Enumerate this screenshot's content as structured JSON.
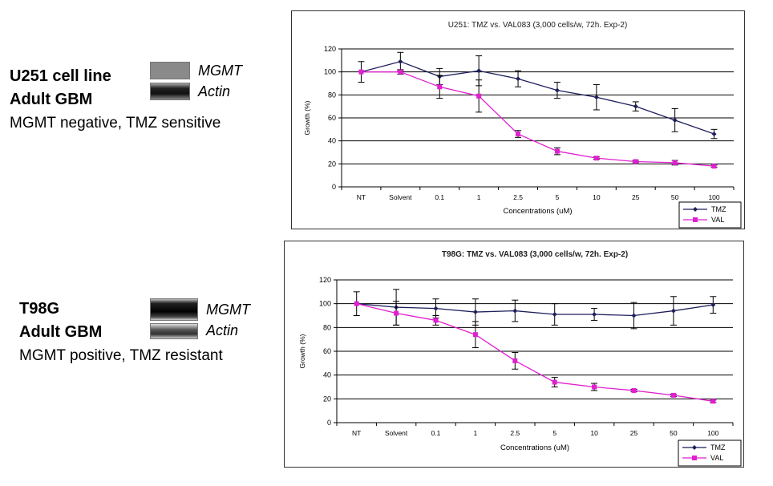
{
  "panels": [
    {
      "cell_line": "U251 cell line",
      "type": "Adult GBM",
      "status": "MGMT negative, TMZ sensitive",
      "blot_labels": [
        "MGMT",
        "Actin"
      ]
    },
    {
      "cell_line": "T98G",
      "type": "Adult GBM",
      "status": "MGMT positive, TMZ resistant",
      "blot_labels": [
        "MGMT",
        "Actin"
      ]
    }
  ],
  "colors": {
    "tmz": "#1f1f5c",
    "val": "#e020d0",
    "grid": "#000000"
  },
  "chart_data": [
    {
      "type": "line",
      "title": "U251: TMZ vs. VAL083 (3,000 cells/w, 72h. Exp-2)",
      "xlabel": "Concentrations (uM)",
      "ylabel": "Growth (%)",
      "categories": [
        "NT",
        "Solvent",
        "0.1",
        "1",
        "2.5",
        "5",
        "10",
        "25",
        "50",
        "100"
      ],
      "ylim": [
        0,
        120
      ],
      "yticks": [
        0,
        20,
        40,
        60,
        80,
        100,
        120
      ],
      "legend_position": "bottom-right",
      "series": [
        {
          "name": "TMZ",
          "marker": "diamond",
          "values": [
            100,
            109,
            96,
            101,
            94,
            84,
            78,
            70,
            58,
            46
          ],
          "errors": [
            9,
            8,
            7,
            13,
            7,
            7,
            11,
            4,
            10,
            4
          ]
        },
        {
          "name": "VAL",
          "marker": "square",
          "values": [
            100,
            100,
            87,
            79,
            46,
            31,
            25,
            22,
            21,
            18
          ],
          "errors": [
            0,
            2,
            10,
            14,
            3,
            3,
            1,
            1,
            2,
            1
          ]
        }
      ]
    },
    {
      "type": "line",
      "title": "T98G: TMZ vs. VAL083 (3,000 cells/w, 72h. Exp-2)",
      "xlabel": "Concentrations (uM)",
      "ylabel": "Growth (%)",
      "categories": [
        "NT",
        "Solvent",
        "0.1",
        "1",
        "2.5",
        "5",
        "10",
        "25",
        "50",
        "100"
      ],
      "ylim": [
        0,
        120
      ],
      "yticks": [
        0,
        20,
        40,
        60,
        80,
        100,
        120
      ],
      "legend_position": "bottom-right",
      "series": [
        {
          "name": "TMZ",
          "marker": "diamond",
          "values": [
            100,
            97,
            96,
            93,
            94,
            91,
            91,
            90,
            94,
            99
          ],
          "errors": [
            10,
            15,
            8,
            11,
            9,
            9,
            5,
            11,
            12,
            7
          ]
        },
        {
          "name": "VAL",
          "marker": "square",
          "values": [
            100,
            92,
            86,
            74,
            52,
            34,
            30,
            27,
            23,
            18
          ],
          "errors": [
            0,
            10,
            4,
            11,
            7,
            4,
            3,
            1,
            1,
            1
          ]
        }
      ]
    }
  ]
}
